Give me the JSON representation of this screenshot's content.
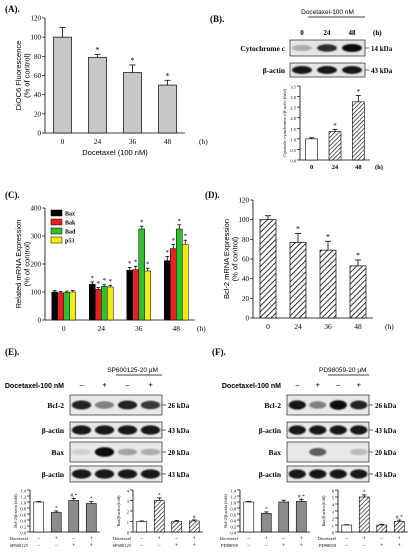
{
  "panels": {
    "A": {
      "label": "(A)."
    },
    "B": {
      "label": "(B)."
    },
    "C": {
      "label": "(C)."
    },
    "D": {
      "label": "(D)."
    },
    "E": {
      "label": "(E)."
    },
    "F": {
      "label": "(F)."
    }
  },
  "unit_h": "(h)",
  "star": "*",
  "hash_star": "#,",
  "hash": "#",
  "blot_B": {
    "treatment": "Docetaxel-100 nM",
    "times": [
      "0",
      "24",
      "48"
    ],
    "rows": [
      {
        "name": "Cytochrome c",
        "kda": "14 kDa"
      },
      {
        "name": "β-actin",
        "kda": "43 kDa"
      }
    ]
  },
  "blot_E": {
    "treatment1": "Docetaxel-100 nM",
    "treatment2": "SP600125-20 µM",
    "signs1": [
      "−",
      "+",
      "−",
      "+"
    ],
    "signs2": [
      "−",
      "−",
      "+",
      "+"
    ],
    "rows": [
      {
        "name": "Bcl-2",
        "kda": "26 kDa"
      },
      {
        "name": "β-actin",
        "kda": "43 kDa"
      },
      {
        "name": "Bax",
        "kda": "20 kDa"
      },
      {
        "name": "β-actin",
        "kda": "43 kDa"
      }
    ]
  },
  "blot_F": {
    "treatment1": "Docetaxel-100 nM",
    "treatment2": "PD98059-20 µM",
    "signs1": [
      "−",
      "+",
      "−",
      "+"
    ],
    "signs2": [
      "−",
      "−",
      "+",
      "+"
    ],
    "rows": [
      {
        "name": "Bcl-2",
        "kda": "26 kDa"
      },
      {
        "name": "β-actin",
        "kda": "43 kDa"
      },
      {
        "name": "Bax",
        "kda": "20 kDa"
      },
      {
        "name": "β-actin",
        "kda": "43 kDa"
      }
    ]
  },
  "chart_data": [
    {
      "id": "A",
      "type": "bar",
      "categories": [
        "0",
        "24",
        "36",
        "48"
      ],
      "values": [
        100,
        79,
        63,
        50
      ],
      "errors": [
        10,
        3,
        8,
        5
      ],
      "stars": [
        false,
        true,
        true,
        true
      ],
      "ylabel": "DiOC6 Fluorescence (% of control)",
      "xlabel": "Docetaxel (100 nM)",
      "ylim": [
        0,
        120
      ],
      "yticks": [
        0,
        20,
        40,
        60,
        80,
        100,
        120
      ]
    },
    {
      "id": "B",
      "type": "bar",
      "categories": [
        "0",
        "24",
        "48"
      ],
      "values": [
        1.0,
        1.35,
        2.75
      ],
      "errors": [
        0.05,
        0.1,
        0.3
      ],
      "stars": [
        false,
        true,
        true
      ],
      "ylabel": "Cytosolic cytochrome c/β-actin (fold)",
      "ylim": [
        0,
        3.5
      ],
      "yticks": [
        0,
        0.5,
        1.0,
        1.5,
        2.0,
        2.5,
        3.0,
        3.5
      ]
    },
    {
      "id": "C",
      "type": "bar",
      "categories": [
        "0",
        "24",
        "36",
        "48"
      ],
      "series": [
        {
          "name": "Bax",
          "color": "#000000",
          "values": [
            100,
            128,
            178,
            212
          ],
          "errors": [
            5,
            8,
            10,
            15
          ]
        },
        {
          "name": "Bak",
          "color": "#e8201e",
          "values": [
            97,
            110,
            180,
            255
          ],
          "errors": [
            5,
            6,
            12,
            15
          ]
        },
        {
          "name": "Bad",
          "color": "#2fbf2f",
          "values": [
            98,
            120,
            325,
            325
          ],
          "errors": [
            5,
            6,
            10,
            15
          ]
        },
        {
          "name": "p53",
          "color": "#f5ea14",
          "values": [
            100,
            118,
            175,
            270
          ],
          "errors": [
            5,
            6,
            10,
            15
          ]
        }
      ],
      "stars": [
        [
          false,
          true,
          true,
          true
        ],
        [
          false,
          true,
          true,
          true
        ],
        [
          false,
          true,
          true,
          true
        ],
        [
          false,
          true,
          true,
          true
        ]
      ],
      "ylabel": "Related mRNA Expression (% of control)",
      "ylim": [
        0,
        400
      ],
      "yticks": [
        0,
        100,
        200,
        300,
        400
      ]
    },
    {
      "id": "D",
      "type": "bar",
      "categories": [
        "0",
        "24",
        "36",
        "48"
      ],
      "values": [
        100,
        77,
        69,
        53
      ],
      "errors": [
        4,
        9,
        9,
        6
      ],
      "stars": [
        false,
        true,
        true,
        true
      ],
      "ylabel": "Bcl-2 mRNA Expression (% of control)",
      "ylim": [
        0,
        120
      ],
      "yticks": [
        0,
        20,
        40,
        60,
        80,
        100,
        120
      ]
    },
    {
      "id": "E1",
      "type": "bar",
      "values": [
        1.0,
        0.65,
        1.05,
        0.95
      ],
      "errors": [
        0.02,
        0.05,
        0.07,
        0.06
      ],
      "marks": [
        "",
        "*",
        "#,*",
        "*"
      ],
      "ylabel": "Bcl-2/β-actin (fold)",
      "ylim": [
        0,
        1.4
      ],
      "yticks": [
        0,
        0.2,
        0.4,
        0.6,
        0.8,
        1.0,
        1.2,
        1.4
      ],
      "row1_label": "Docetaxel",
      "row2_label": "SP600125"
    },
    {
      "id": "E2",
      "type": "bar",
      "values": [
        1.0,
        3.0,
        1.0,
        1.05
      ],
      "errors": [
        0.05,
        0.25,
        0.1,
        0.1
      ],
      "marks": [
        "",
        "*",
        "",
        "#"
      ],
      "ylabel": "Bax/β-actin (fold)",
      "ylim": [
        0,
        4
      ],
      "yticks": [
        0,
        1,
        2,
        3,
        4
      ],
      "row1_label": "Docetaxel",
      "row2_label": "SP600125"
    },
    {
      "id": "F1",
      "type": "bar",
      "values": [
        1.0,
        0.62,
        1.0,
        1.02
      ],
      "errors": [
        0.02,
        0.05,
        0.06,
        0.07
      ],
      "marks": [
        "",
        "*",
        "",
        "#,*"
      ],
      "ylabel": "Bcl-2/β-actin (fold)",
      "ylim": [
        0,
        1.4
      ],
      "yticks": [
        0,
        0.2,
        0.4,
        0.6,
        0.8,
        1.0,
        1.2,
        1.4
      ],
      "row1_label": "Docetaxel",
      "row2_label": "PD98059"
    },
    {
      "id": "F2",
      "type": "bar",
      "values": [
        1.0,
        5.0,
        1.0,
        1.5
      ],
      "errors": [
        0.05,
        0.3,
        0.1,
        0.2
      ],
      "marks": [
        "",
        "*",
        "",
        "#,*"
      ],
      "ylabel": "Bax/β-actin (fold)",
      "ylim": [
        0,
        6
      ],
      "yticks": [
        0,
        1,
        2,
        3,
        4,
        5,
        6
      ],
      "row1_label": "Docetaxel",
      "row2_label": "PD98059"
    }
  ]
}
